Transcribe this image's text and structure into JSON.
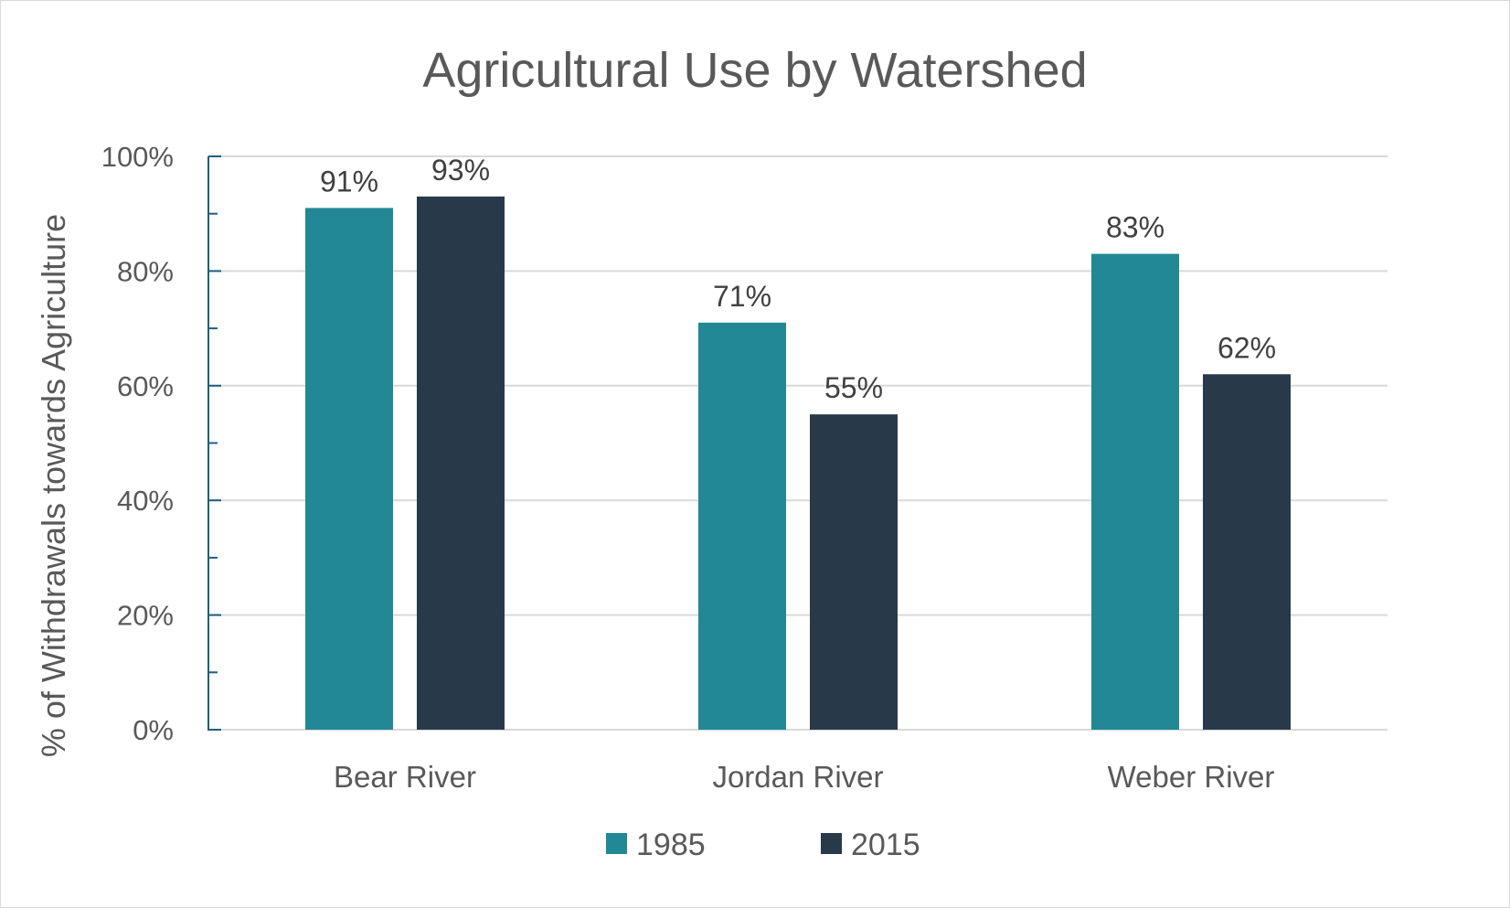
{
  "chart_data": {
    "type": "bar",
    "title": "Agricultural Use by Watershed",
    "xlabel": "",
    "ylabel": "% of Withdrawals  towards Agriculture",
    "categories": [
      "Bear River",
      "Jordan River",
      "Weber River"
    ],
    "series": [
      {
        "name": "1985",
        "values": [
          91,
          71,
          83
        ],
        "labels": [
          "91%",
          "71%",
          "83%"
        ],
        "color": "#228896"
      },
      {
        "name": "2015",
        "values": [
          93,
          55,
          62
        ],
        "labels": [
          "93%",
          "55%",
          "62%"
        ],
        "color": "#283a4a"
      }
    ],
    "ylim": [
      0,
      100
    ],
    "yticks": [
      0,
      20,
      40,
      60,
      80,
      100
    ],
    "ytick_labels": [
      "0%",
      "20%",
      "40%",
      "60%",
      "80%",
      "100%"
    ],
    "grid": true,
    "legend": "bottom",
    "colors": {
      "gridline": "#d9d9d9",
      "axis": "#1f5f7a"
    }
  }
}
